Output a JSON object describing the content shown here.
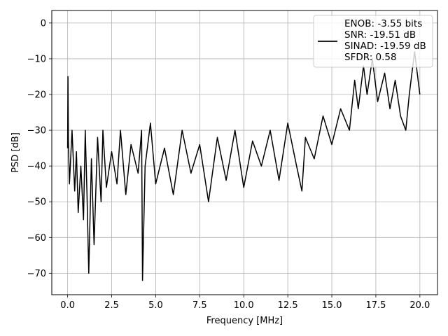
{
  "chart_data": {
    "type": "line",
    "title": "",
    "xlabel": "Frequency [MHz]",
    "ylabel": "PSD [dB]",
    "xlim": [
      -0.9,
      21.0
    ],
    "ylim": [
      -76,
      3.5
    ],
    "xticks": [
      0.0,
      2.5,
      5.0,
      7.5,
      10.0,
      12.5,
      15.0,
      17.5,
      20.0
    ],
    "xtick_labels": [
      "0.0",
      "2.5",
      "5.0",
      "7.5",
      "10.0",
      "12.5",
      "15.0",
      "17.5",
      "20.0"
    ],
    "yticks": [
      0,
      -10,
      -20,
      -30,
      -40,
      -50,
      -60,
      -70
    ],
    "ytick_labels": [
      "0",
      "−10",
      "−20",
      "−30",
      "−40",
      "−50",
      "−60",
      "−70"
    ],
    "grid": true,
    "legend_position": "top-right",
    "colors": {
      "line": "#000000",
      "grid": "#b0b0b0",
      "axes": "#000000"
    },
    "legend_lines": [
      "ENOB: -3.55 bits",
      "SNR: -19.51 dB",
      "SINAD: -19.59 dB",
      "SFDR: 0.58"
    ],
    "series": [
      {
        "x": [
          0.0,
          0.02,
          0.04,
          0.1,
          0.25,
          0.4,
          0.5,
          0.6,
          0.75,
          0.9,
          1.0,
          1.1,
          1.2,
          1.35,
          1.5,
          1.7,
          1.9,
          2.0,
          2.2,
          2.5,
          2.8,
          3.0,
          3.3,
          3.6,
          4.0,
          4.2,
          4.25,
          4.4,
          4.7,
          5.0,
          5.5,
          6.0,
          6.5,
          7.0,
          7.5,
          8.0,
          8.5,
          9.0,
          9.5,
          10.0,
          10.5,
          11.0,
          11.5,
          12.0,
          12.5,
          13.0,
          13.3,
          13.5,
          14.0,
          14.5,
          15.0,
          15.5,
          16.0,
          16.3,
          16.5,
          16.8,
          17.0,
          17.3,
          17.6,
          18.0,
          18.3,
          18.6,
          18.9,
          19.2,
          19.4,
          19.7,
          20.0
        ],
        "y": [
          -35,
          -15,
          -33,
          -45,
          -30,
          -47,
          -36,
          -53,
          -40,
          -55,
          -30,
          -48,
          -70,
          -38,
          -62,
          -32,
          -50,
          -30,
          -46,
          -36,
          -45,
          -30,
          -48,
          -34,
          -42,
          -30,
          -72,
          -40,
          -28,
          -45,
          -35,
          -48,
          -30,
          -42,
          -34,
          -50,
          -32,
          -44,
          -30,
          -46,
          -33,
          -40,
          -30,
          -44,
          -28,
          -40,
          -47,
          -32,
          -38,
          -26,
          -34,
          -24,
          -30,
          -16,
          -24,
          -12,
          -20,
          -10,
          -22,
          -14,
          -24,
          -16,
          -26,
          -30,
          -20,
          -8,
          -20
        ]
      }
    ]
  }
}
